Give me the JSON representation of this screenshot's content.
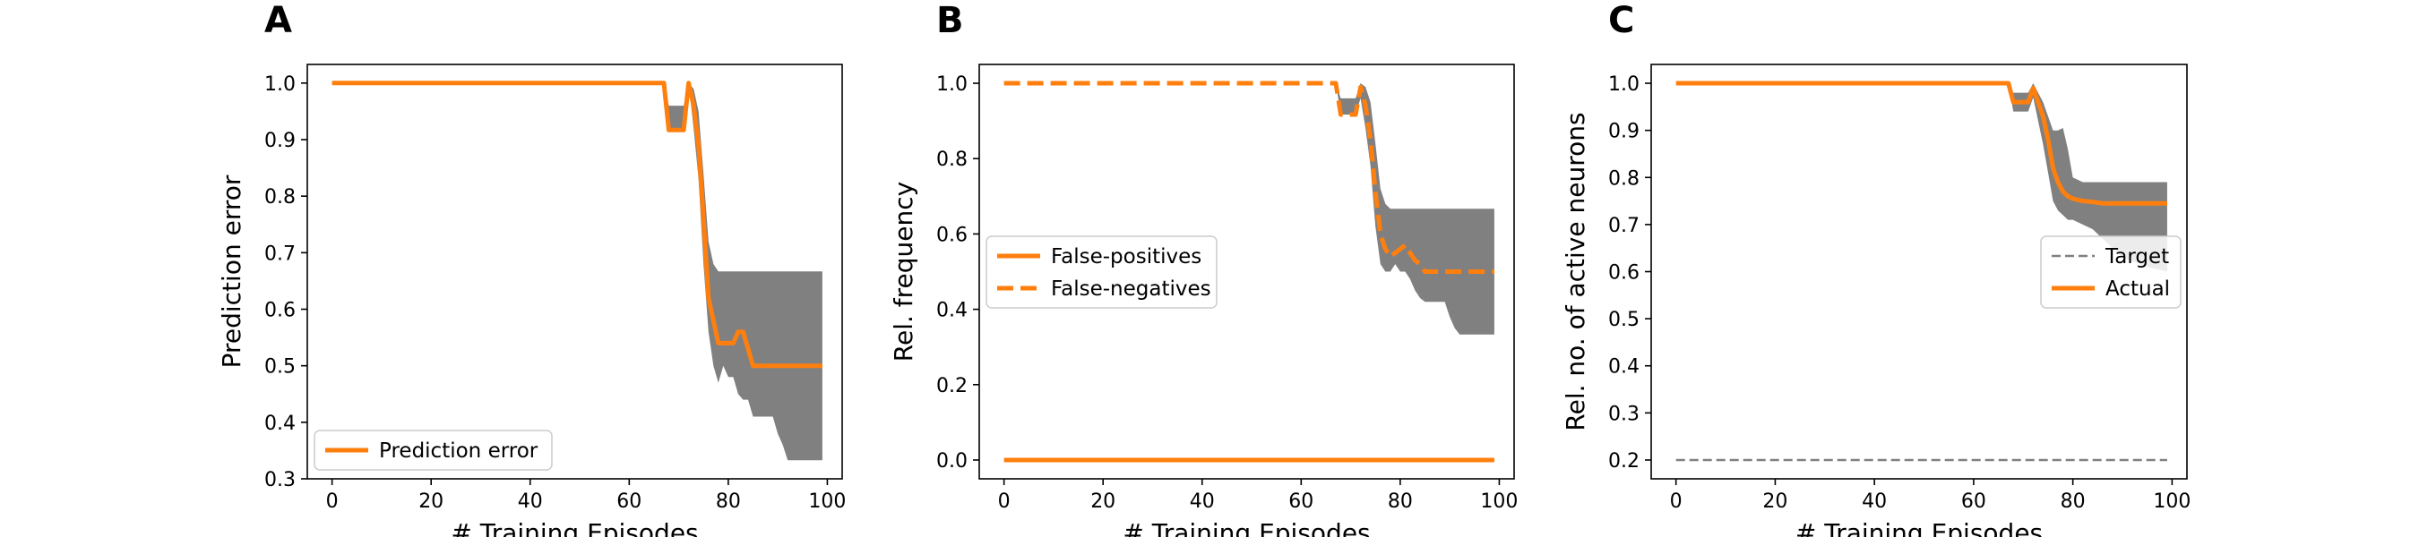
{
  "chart_data": [
    {
      "panel": "A",
      "type": "line",
      "xlabel": "# Training Episodes",
      "ylabel": "Prediction error",
      "xlim": [
        -5,
        103
      ],
      "ylim": [
        0.3,
        1.033
      ],
      "xticks": [
        0,
        20,
        40,
        60,
        80,
        100
      ],
      "yticks": [
        0.3,
        0.4,
        0.5,
        0.6,
        0.7,
        0.8,
        0.9,
        1.0
      ],
      "ytick_decimals": 1,
      "legend": {
        "position": "lower-left",
        "entries": [
          "Prediction error"
        ]
      },
      "series": [
        {
          "name": "Prediction error",
          "color": "#ff7f0e",
          "style": "solid",
          "x": [
            0,
            67,
            68,
            71,
            72,
            73,
            74,
            75,
            76,
            77,
            78,
            79,
            80,
            81,
            82,
            83,
            84,
            85,
            86,
            87,
            88,
            89,
            90,
            91,
            92,
            93,
            94,
            95,
            96,
            97,
            98,
            99
          ],
          "y": [
            1.0,
            1.0,
            0.917,
            0.917,
            1.0,
            0.96,
            0.89,
            0.76,
            0.62,
            0.58,
            0.54,
            0.54,
            0.54,
            0.54,
            0.56,
            0.56,
            0.53,
            0.5,
            0.5,
            0.5,
            0.5,
            0.5,
            0.5,
            0.5,
            0.5,
            0.5,
            0.5,
            0.5,
            0.5,
            0.5,
            0.5,
            0.5
          ]
        }
      ],
      "bands": [
        {
          "color": "#808080",
          "x": [
            0,
            67,
            68,
            71,
            72,
            73,
            74,
            75,
            76,
            77,
            78,
            79,
            80,
            81,
            82,
            83,
            84,
            85,
            86,
            87,
            88,
            89,
            90,
            91,
            92,
            93,
            94,
            95,
            96,
            97,
            98,
            99
          ],
          "lower": [
            1.0,
            1.0,
            0.917,
            0.917,
            1.0,
            0.92,
            0.83,
            0.68,
            0.56,
            0.5,
            0.47,
            0.5,
            0.48,
            0.48,
            0.45,
            0.44,
            0.44,
            0.41,
            0.41,
            0.41,
            0.41,
            0.41,
            0.38,
            0.36,
            0.333,
            0.333,
            0.333,
            0.333,
            0.333,
            0.333,
            0.333,
            0.333
          ],
          "upper": [
            1.0,
            1.0,
            0.96,
            0.96,
            1.0,
            0.99,
            0.95,
            0.84,
            0.72,
            0.68,
            0.667,
            0.667,
            0.667,
            0.667,
            0.667,
            0.667,
            0.667,
            0.667,
            0.667,
            0.667,
            0.667,
            0.667,
            0.667,
            0.667,
            0.667,
            0.667,
            0.667,
            0.667,
            0.667,
            0.667,
            0.667,
            0.667
          ]
        }
      ]
    },
    {
      "panel": "B",
      "type": "line",
      "xlabel": "# Training Episodes",
      "ylabel": "Rel. frequency",
      "xlim": [
        -5,
        103
      ],
      "ylim": [
        -0.05,
        1.05
      ],
      "xticks": [
        0,
        20,
        40,
        60,
        80,
        100
      ],
      "yticks": [
        0.0,
        0.2,
        0.4,
        0.6,
        0.8,
        1.0
      ],
      "ytick_decimals": 1,
      "legend": {
        "position": "center-left",
        "entries": [
          "False-positives",
          "False-negatives"
        ]
      },
      "series": [
        {
          "name": "False-positives",
          "color": "#ff7f0e",
          "style": "solid",
          "x": [
            0,
            99
          ],
          "y": [
            0.0,
            0.0
          ]
        },
        {
          "name": "False-negatives",
          "color": "#ff7f0e",
          "style": "dashed",
          "x": [
            0,
            67,
            68,
            71,
            72,
            73,
            74,
            75,
            76,
            77,
            78,
            79,
            80,
            81,
            82,
            83,
            84,
            85,
            86,
            87,
            88,
            89,
            90,
            91,
            92,
            93,
            94,
            95,
            96,
            97,
            98,
            99
          ],
          "y": [
            1.0,
            1.0,
            0.917,
            0.917,
            0.99,
            0.94,
            0.85,
            0.71,
            0.6,
            0.56,
            0.54,
            0.55,
            0.56,
            0.57,
            0.55,
            0.53,
            0.52,
            0.5,
            0.5,
            0.5,
            0.5,
            0.5,
            0.5,
            0.5,
            0.5,
            0.5,
            0.5,
            0.5,
            0.5,
            0.5,
            0.5,
            0.5
          ]
        }
      ],
      "bands": [
        {
          "color": "#808080",
          "x": [
            0,
            67,
            68,
            71,
            72,
            73,
            74,
            75,
            76,
            77,
            78,
            79,
            80,
            81,
            82,
            83,
            84,
            85,
            86,
            87,
            88,
            89,
            90,
            91,
            92,
            93,
            94,
            95,
            96,
            97,
            98,
            99
          ],
          "lower": [
            1.0,
            1.0,
            0.917,
            0.917,
            0.96,
            0.88,
            0.78,
            0.62,
            0.52,
            0.5,
            0.5,
            0.52,
            0.5,
            0.5,
            0.48,
            0.45,
            0.43,
            0.42,
            0.42,
            0.42,
            0.42,
            0.42,
            0.38,
            0.35,
            0.333,
            0.333,
            0.333,
            0.333,
            0.333,
            0.333,
            0.333,
            0.333
          ],
          "upper": [
            1.0,
            1.0,
            0.96,
            0.96,
            1.0,
            0.99,
            0.95,
            0.84,
            0.72,
            0.68,
            0.667,
            0.667,
            0.667,
            0.667,
            0.667,
            0.667,
            0.667,
            0.667,
            0.667,
            0.667,
            0.667,
            0.667,
            0.667,
            0.667,
            0.667,
            0.667,
            0.667,
            0.667,
            0.667,
            0.667,
            0.667,
            0.667
          ]
        }
      ]
    },
    {
      "panel": "C",
      "type": "line",
      "xlabel": "# Training Episodes",
      "ylabel": "Rel. no. of active neurons",
      "xlim": [
        -5,
        103
      ],
      "ylim": [
        0.16,
        1.04
      ],
      "xticks": [
        0,
        20,
        40,
        60,
        80,
        100
      ],
      "yticks": [
        0.2,
        0.3,
        0.4,
        0.5,
        0.6,
        0.7,
        0.8,
        0.9,
        1.0
      ],
      "ytick_decimals": 1,
      "legend": {
        "position": "right",
        "entries": [
          "Target",
          "Actual"
        ]
      },
      "series": [
        {
          "name": "Target",
          "color": "#808080",
          "style": "dashed-thin",
          "x": [
            0,
            99
          ],
          "y": [
            0.2,
            0.2
          ]
        },
        {
          "name": "Actual",
          "color": "#ff7f0e",
          "style": "solid",
          "x": [
            0,
            67,
            68,
            71,
            72,
            73,
            74,
            75,
            76,
            77,
            78,
            79,
            80,
            82,
            84,
            86,
            88,
            90,
            95,
            99
          ],
          "y": [
            1.0,
            1.0,
            0.96,
            0.96,
            0.99,
            0.96,
            0.93,
            0.88,
            0.82,
            0.79,
            0.77,
            0.76,
            0.755,
            0.75,
            0.748,
            0.745,
            0.745,
            0.745,
            0.745,
            0.745
          ]
        }
      ],
      "bands": [
        {
          "color": "#808080",
          "x": [
            0,
            67,
            68,
            71,
            72,
            73,
            74,
            75,
            76,
            77,
            78,
            79,
            80,
            82,
            84,
            86,
            88,
            90,
            95,
            99
          ],
          "lower": [
            1.0,
            1.0,
            0.94,
            0.94,
            0.97,
            0.92,
            0.87,
            0.81,
            0.75,
            0.73,
            0.72,
            0.71,
            0.71,
            0.7,
            0.69,
            0.67,
            0.65,
            0.63,
            0.61,
            0.6
          ],
          "upper": [
            1.0,
            1.0,
            0.98,
            0.98,
            1.0,
            0.98,
            0.96,
            0.93,
            0.9,
            0.9,
            0.905,
            0.86,
            0.8,
            0.79,
            0.79,
            0.79,
            0.79,
            0.79,
            0.79,
            0.79
          ]
        }
      ]
    }
  ]
}
